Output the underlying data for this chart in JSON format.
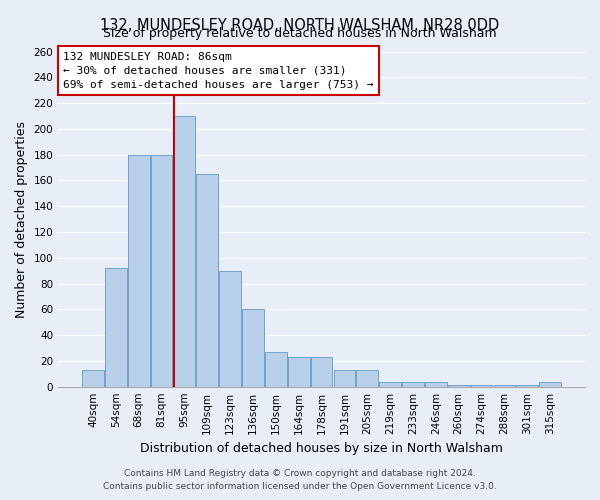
{
  "title": "132, MUNDESLEY ROAD, NORTH WALSHAM, NR28 0DD",
  "subtitle": "Size of property relative to detached houses in North Walsham",
  "xlabel": "Distribution of detached houses by size in North Walsham",
  "ylabel": "Number of detached properties",
  "categories": [
    "40sqm",
    "54sqm",
    "68sqm",
    "81sqm",
    "95sqm",
    "109sqm",
    "123sqm",
    "136sqm",
    "150sqm",
    "164sqm",
    "178sqm",
    "191sqm",
    "205sqm",
    "219sqm",
    "233sqm",
    "246sqm",
    "260sqm",
    "274sqm",
    "288sqm",
    "301sqm",
    "315sqm"
  ],
  "values": [
    13,
    92,
    180,
    180,
    210,
    165,
    90,
    60,
    27,
    23,
    23,
    13,
    13,
    4,
    4,
    4,
    1,
    1,
    1,
    1,
    4
  ],
  "bar_color": "#b8d0ea",
  "bar_edge_color": "#6ea3cc",
  "highlight_line_color": "#cc0000",
  "annotation_title": "132 MUNDESLEY ROAD: 86sqm",
  "annotation_line1": "← 30% of detached houses are smaller (331)",
  "annotation_line2": "69% of semi-detached houses are larger (753) →",
  "annotation_box_color": "#ffffff",
  "annotation_box_edge": "#cc0000",
  "ylim": [
    0,
    260
  ],
  "yticks": [
    0,
    20,
    40,
    60,
    80,
    100,
    120,
    140,
    160,
    180,
    200,
    220,
    240,
    260
  ],
  "footer1": "Contains HM Land Registry data © Crown copyright and database right 2024.",
  "footer2": "Contains public sector information licensed under the Open Government Licence v3.0.",
  "bg_color": "#e8eef8",
  "plot_bg_color": "#e8eef8",
  "grid_color": "#ffffff",
  "title_fontsize": 10.5,
  "subtitle_fontsize": 9,
  "axis_label_fontsize": 9,
  "tick_fontsize": 7.5,
  "footer_fontsize": 6.5,
  "ann_fontsize": 8.0
}
